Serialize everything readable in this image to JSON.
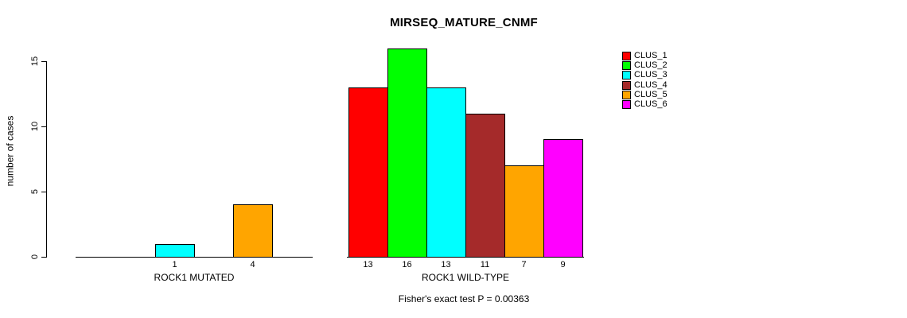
{
  "chart_data": {
    "type": "bar",
    "title": "MIRSEQ_MATURE_CNMF",
    "ylabel": "number of cases",
    "xlabel": "",
    "yticks": [
      0,
      5,
      10,
      15
    ],
    "ylim": [
      0,
      16
    ],
    "grid": false,
    "legend_position": "top-right",
    "clusters": [
      {
        "name": "CLUS_1",
        "color": "#FF0000"
      },
      {
        "name": "CLUS_2",
        "color": "#00FF00"
      },
      {
        "name": "CLUS_3",
        "color": "#00FFFF"
      },
      {
        "name": "CLUS_4",
        "color": "#A52A2A"
      },
      {
        "name": "CLUS_5",
        "color": "#FFA500"
      },
      {
        "name": "CLUS_6",
        "color": "#FF00FF"
      }
    ],
    "groups": [
      {
        "label": "ROCK1 MUTATED",
        "values": [
          0,
          0,
          1,
          0,
          4,
          0
        ]
      },
      {
        "label": "ROCK1 WILD-TYPE",
        "values": [
          13,
          16,
          13,
          11,
          7,
          9
        ]
      }
    ],
    "annotation": "Fisher's exact test P = 0.00363"
  },
  "colors": {
    "background": "#FFFFFF",
    "axis": "#000000",
    "text": "#000000"
  }
}
